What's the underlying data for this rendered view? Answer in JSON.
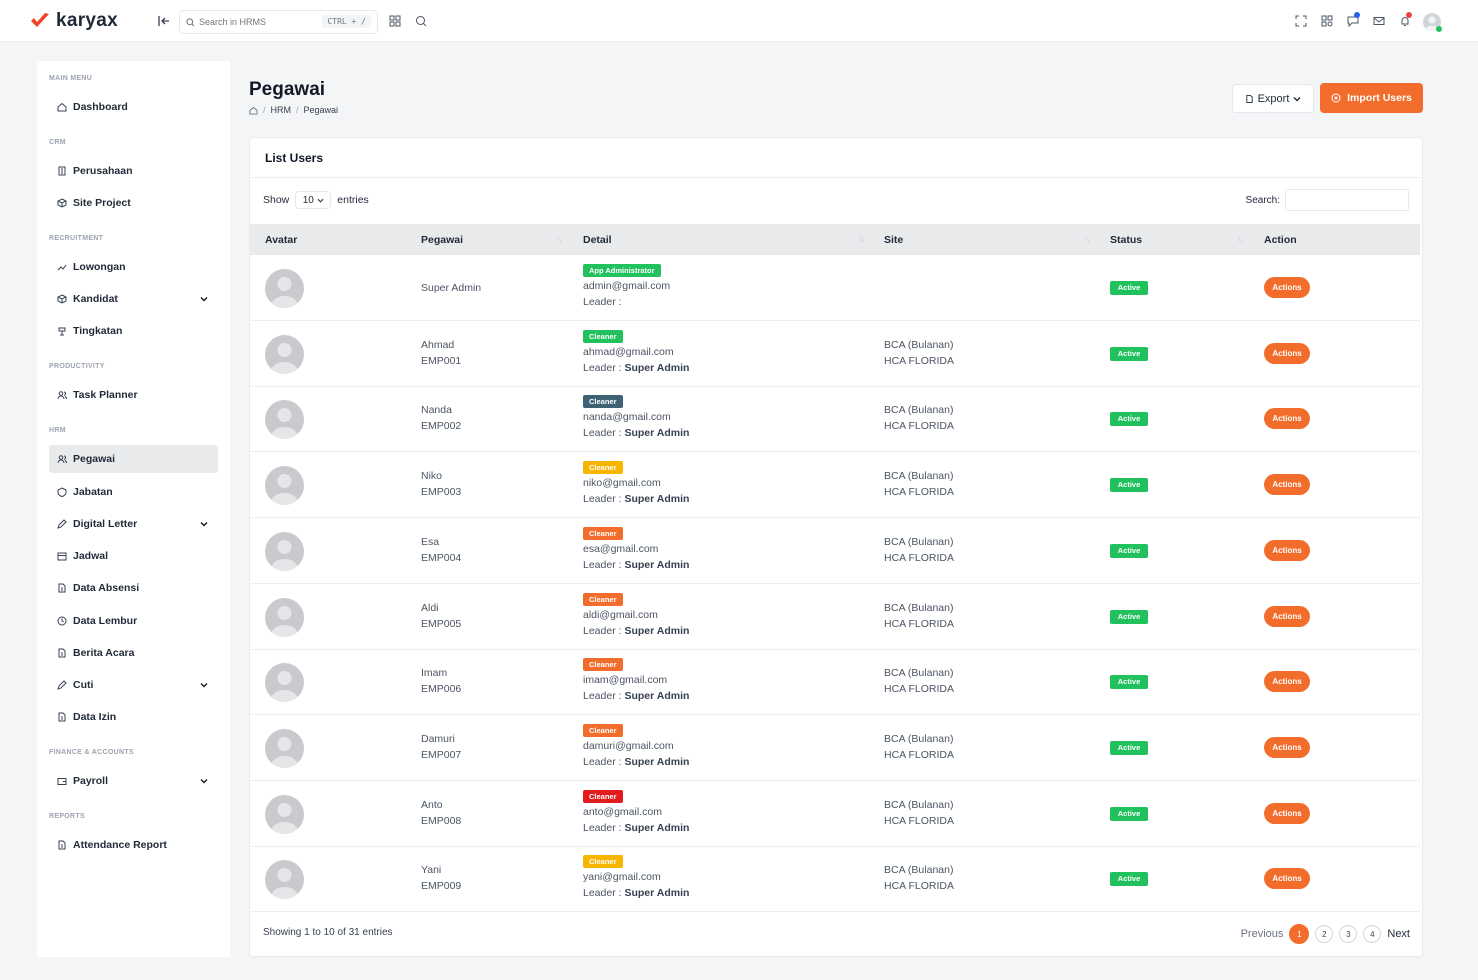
{
  "app": {
    "name": "karyax"
  },
  "topbar": {
    "search_placeholder": "Search in HRMS",
    "shortcut": "CTRL + /"
  },
  "colors": {
    "accent": "#f26d2b",
    "active": "#21c25e"
  },
  "sidebar": {
    "sections": [
      {
        "label": "MAIN MENU",
        "items": [
          {
            "label": "Dashboard",
            "icon": "home-icon"
          }
        ]
      },
      {
        "label": "CRM",
        "items": [
          {
            "label": "Perusahaan",
            "icon": "building-icon"
          },
          {
            "label": "Site Project",
            "icon": "cube-icon"
          }
        ]
      },
      {
        "label": "RECRUITMENT",
        "items": [
          {
            "label": "Lowongan",
            "icon": "trend-icon"
          },
          {
            "label": "Kandidat",
            "icon": "cube-icon",
            "submenu": true
          },
          {
            "label": "Tingkatan",
            "icon": "layers-icon"
          }
        ]
      },
      {
        "label": "PRODUCTIVITY",
        "items": [
          {
            "label": "Task Planner",
            "icon": "users-icon"
          }
        ]
      },
      {
        "label": "HRM",
        "items": [
          {
            "label": "Pegawai",
            "icon": "users-icon",
            "active": true
          },
          {
            "label": "Jabatan",
            "icon": "shield-icon"
          },
          {
            "label": "Digital Letter",
            "icon": "edit-icon",
            "submenu": true
          },
          {
            "label": "Jadwal",
            "icon": "calendar-icon"
          },
          {
            "label": "Data Absensi",
            "icon": "file-icon"
          },
          {
            "label": "Data Lembur",
            "icon": "clock-icon"
          },
          {
            "label": "Berita Acara",
            "icon": "file-icon"
          },
          {
            "label": "Cuti",
            "icon": "edit-icon",
            "submenu": true
          },
          {
            "label": "Data Izin",
            "icon": "file-icon"
          }
        ]
      },
      {
        "label": "FINANCE & ACCOUNTS",
        "items": [
          {
            "label": "Payroll",
            "icon": "wallet-icon",
            "submenu": true
          }
        ]
      },
      {
        "label": "REPORTS",
        "items": [
          {
            "label": "Attendance Report",
            "icon": "file-icon"
          }
        ]
      }
    ]
  },
  "header": {
    "title": "Pegawai",
    "breadcrumb": [
      "HRM",
      "Pegawai"
    ],
    "export_label": "Export",
    "import_label": "Import Users"
  },
  "card": {
    "title": "List Users",
    "show_label": "Show",
    "entries_value": "10",
    "entries_label": "entries",
    "search_label": "Search:",
    "search_value": ""
  },
  "table": {
    "columns": [
      "Avatar",
      "Pegawai",
      "Detail",
      "Site",
      "Status",
      "Action"
    ],
    "leader_prefix": "Leader :",
    "rows": [
      {
        "name": "Super Admin",
        "emp": "",
        "role": "App Administrator",
        "role_color": "#21c25e",
        "email": "admin@gmail.com",
        "leader": "",
        "site1": "",
        "site2": "",
        "status": "Active",
        "action": "Actions"
      },
      {
        "name": "Ahmad",
        "emp": "EMP001",
        "role": "Cleaner",
        "role_color": "#21c25e",
        "email": "ahmad@gmail.com",
        "leader": "Super Admin",
        "site1": "BCA (Bulanan)",
        "site2": "HCA FLORIDA",
        "status": "Active",
        "action": "Actions"
      },
      {
        "name": "Nanda",
        "emp": "EMP002",
        "role": "Cleaner",
        "role_color": "#3d6273",
        "email": "nanda@gmail.com",
        "leader": "Super Admin",
        "site1": "BCA (Bulanan)",
        "site2": "HCA FLORIDA",
        "status": "Active",
        "action": "Actions"
      },
      {
        "name": "Niko",
        "emp": "EMP003",
        "role": "Cleaner",
        "role_color": "#f7b500",
        "email": "niko@gmail.com",
        "leader": "Super Admin",
        "site1": "BCA (Bulanan)",
        "site2": "HCA FLORIDA",
        "status": "Active",
        "action": "Actions"
      },
      {
        "name": "Esa",
        "emp": "EMP004",
        "role": "Cleaner",
        "role_color": "#f26d2b",
        "email": "esa@gmail.com",
        "leader": "Super Admin",
        "site1": "BCA (Bulanan)",
        "site2": "HCA FLORIDA",
        "status": "Active",
        "action": "Actions"
      },
      {
        "name": "Aldi",
        "emp": "EMP005",
        "role": "Cleaner",
        "role_color": "#f26d2b",
        "email": "aldi@gmail.com",
        "leader": "Super Admin",
        "site1": "BCA (Bulanan)",
        "site2": "HCA FLORIDA",
        "status": "Active",
        "action": "Actions"
      },
      {
        "name": "Imam",
        "emp": "EMP006",
        "role": "Cleaner",
        "role_color": "#f26d2b",
        "email": "imam@gmail.com",
        "leader": "Super Admin",
        "site1": "BCA (Bulanan)",
        "site2": "HCA FLORIDA",
        "status": "Active",
        "action": "Actions"
      },
      {
        "name": "Damuri",
        "emp": "EMP007",
        "role": "Cleaner",
        "role_color": "#f26d2b",
        "email": "damuri@gmail.com",
        "leader": "Super Admin",
        "site1": "BCA (Bulanan)",
        "site2": "HCA FLORIDA",
        "status": "Active",
        "action": "Actions"
      },
      {
        "name": "Anto",
        "emp": "EMP008",
        "role": "Cleaner",
        "role_color": "#e21c1c",
        "email": "anto@gmail.com",
        "leader": "Super Admin",
        "site1": "BCA (Bulanan)",
        "site2": "HCA FLORIDA",
        "status": "Active",
        "action": "Actions"
      },
      {
        "name": "Yani",
        "emp": "EMP009",
        "role": "Cleaner",
        "role_color": "#f7b500",
        "email": "yani@gmail.com",
        "leader": "Super Admin",
        "site1": "BCA (Bulanan)",
        "site2": "HCA FLORIDA",
        "status": "Active",
        "action": "Actions"
      }
    ]
  },
  "footer": {
    "info": "Showing 1 to 10 of 31 entries",
    "previous": "Previous",
    "next": "Next",
    "pages": [
      "1",
      "2",
      "3",
      "4"
    ],
    "current_page": "1"
  }
}
